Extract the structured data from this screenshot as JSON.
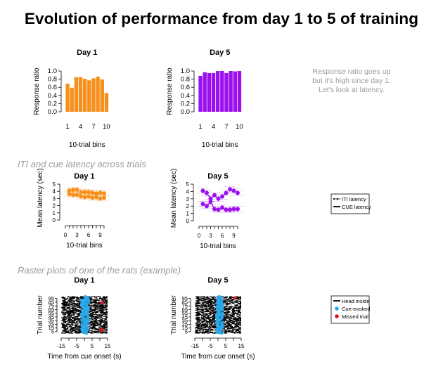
{
  "title": "Evolution of performance from day 1 to 5 of training",
  "section_titles": {
    "latency": "ITI and cue latency across trials",
    "raster": "Raster plots of one of the rats (example)"
  },
  "note_lines": [
    "Response ratio goes up",
    "but it's high since day 1.",
    "Let's look at latency."
  ],
  "colors": {
    "day1": "#f5901e",
    "day5": "#9b10ec",
    "cue_evoked": "#2aa7e8",
    "missed": "#e8101c",
    "note": "#9a9a9a"
  },
  "chart_data": [
    {
      "id": "ratio_day1",
      "type": "bar",
      "title": "Day 1",
      "xlabel": "10-trial bins",
      "ylabel": "Response ratio",
      "categories": [
        1,
        2,
        3,
        4,
        5,
        6,
        7,
        8,
        9,
        10
      ],
      "x_tick_labels": [
        "1",
        "4",
        "7",
        "10"
      ],
      "x_ticks_at": [
        1,
        4,
        7,
        10
      ],
      "y_tick_labels": [
        "0.0",
        "0.2",
        "0.4",
        "0.6",
        "0.8",
        "1.0"
      ],
      "values": [
        0.69,
        0.59,
        0.85,
        0.85,
        0.81,
        0.77,
        0.82,
        0.86,
        0.79,
        0.46
      ],
      "ylim": [
        0,
        1
      ],
      "color": "#f5901e"
    },
    {
      "id": "ratio_day5",
      "type": "bar",
      "title": "Day 5",
      "xlabel": "10-trial bins",
      "ylabel": "Response ratio",
      "categories": [
        1,
        2,
        3,
        4,
        5,
        6,
        7,
        8,
        9,
        10
      ],
      "x_tick_labels": [
        "1",
        "4",
        "7",
        "10"
      ],
      "x_ticks_at": [
        1,
        4,
        7,
        10
      ],
      "y_tick_labels": [
        "0.0",
        "0.2",
        "0.4",
        "0.6",
        "0.8",
        "1.0"
      ],
      "values": [
        0.88,
        0.97,
        0.95,
        0.95,
        1.0,
        1.0,
        0.95,
        1.0,
        0.99,
        1.0
      ],
      "ylim": [
        0,
        1
      ],
      "color": "#9b10ec"
    },
    {
      "id": "latency_day1",
      "type": "line",
      "title": "Day 1",
      "xlabel": "10-trial bins",
      "ylabel": "Mean latency (sec)",
      "x": [
        1,
        2,
        3,
        4,
        5,
        6,
        7,
        8,
        9,
        10
      ],
      "x_tick_labels": [
        "0",
        "3",
        "6",
        "9"
      ],
      "x_ticks_at": [
        0,
        3,
        6,
        9
      ],
      "y_tick_labels": [
        "0",
        "1",
        "2",
        "3",
        "4",
        "5"
      ],
      "series": [
        {
          "name": "ITI latency",
          "style": "dashed",
          "values": [
            4.1,
            4.2,
            4.2,
            3.9,
            3.9,
            3.9,
            3.8,
            3.7,
            3.8,
            3.7
          ]
        },
        {
          "name": "CUE latency",
          "style": "solid",
          "values": [
            3.6,
            3.5,
            3.5,
            3.3,
            3.2,
            3.3,
            3.1,
            3.2,
            3.0,
            3.1
          ]
        }
      ],
      "ylim": [
        0,
        5
      ],
      "color": "#f5901e"
    },
    {
      "id": "latency_day5",
      "type": "line",
      "title": "Day 5",
      "xlabel": "10-trial bins",
      "ylabel": "Mean latency (sec)",
      "x": [
        1,
        2,
        3,
        4,
        5,
        6,
        7,
        8,
        9,
        10
      ],
      "x_tick_labels": [
        "0",
        "3",
        "6",
        "9"
      ],
      "x_ticks_at": [
        0,
        3,
        6,
        9
      ],
      "y_tick_labels": [
        "0",
        "1",
        "2",
        "3",
        "4",
        "5"
      ],
      "series": [
        {
          "name": "ITI latency",
          "style": "dashed",
          "values": [
            4.1,
            3.8,
            3.0,
            3.5,
            3.0,
            3.3,
            3.8,
            4.3,
            4.1,
            3.8
          ]
        },
        {
          "name": "CUE latency",
          "style": "solid",
          "values": [
            2.3,
            2.0,
            2.6,
            1.6,
            1.5,
            1.8,
            1.5,
            1.5,
            1.6,
            1.6
          ]
        }
      ],
      "ylim": [
        0,
        5
      ],
      "color": "#9b10ec"
    },
    {
      "id": "raster_day1",
      "type": "scatter",
      "title": "Day 1",
      "xlabel": "Time from cue onset (s)",
      "ylabel": "Trial number",
      "x_tick_labels": [
        "-15",
        "-5",
        "5",
        "15"
      ],
      "x_ticks_at": [
        -15,
        -5,
        5,
        15
      ],
      "y_tick_labels": [
        "5",
        "15",
        "25",
        "35",
        "45",
        "55",
        "65",
        "75",
        "85",
        "95"
      ],
      "xlim": [
        -15,
        15
      ],
      "ylim": [
        1,
        100
      ],
      "cue_evoked_time_range": [
        -2,
        3
      ],
      "missed_trials": [
        8,
        11,
        83
      ]
    },
    {
      "id": "raster_day5",
      "type": "scatter",
      "title": "Day 5",
      "xlabel": "Time from cue onset (s)",
      "ylabel": "Trial number",
      "x_tick_labels": [
        "-15",
        "-5",
        "5",
        "15"
      ],
      "x_ticks_at": [
        -15,
        -5,
        5,
        15
      ],
      "y_tick_labels": [
        "5",
        "15",
        "25",
        "35",
        "45",
        "55",
        "65",
        "75",
        "85",
        "95"
      ],
      "xlim": [
        -15,
        15
      ],
      "ylim": [
        1,
        100
      ],
      "cue_evoked_time_range": [
        -1,
        3
      ],
      "missed_trials": [
        96
      ]
    }
  ],
  "legends": {
    "latency": [
      "ITI latency",
      "CUE latency"
    ],
    "raster": [
      "Head inside",
      "Cue-evoked",
      "Missed trial"
    ]
  }
}
